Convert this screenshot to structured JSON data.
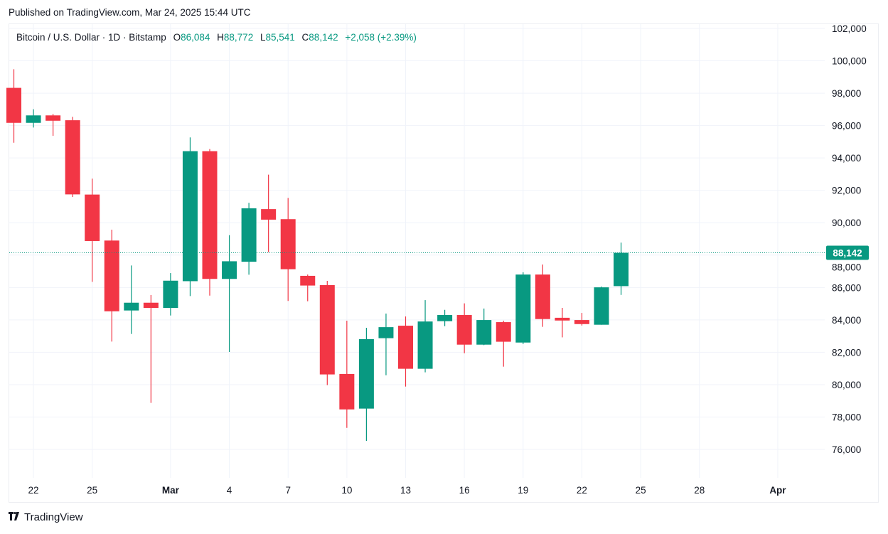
{
  "header": {
    "published": "Published on TradingView.com, Mar 24, 2025 15:44 UTC"
  },
  "legend": {
    "symbol": "Bitcoin / U.S. Dollar · 1D · Bitstamp",
    "o_label": "O",
    "o": "86,084",
    "h_label": "H",
    "h": "88,772",
    "l_label": "L",
    "l": "85,541",
    "c_label": "C",
    "c": "88,142",
    "change": "+2,058 (+2.39%)"
  },
  "footer": {
    "brand": "TradingView",
    "logo_mark": "TV"
  },
  "colors": {
    "up": "#089981",
    "down": "#f23645",
    "grid": "#f0f3fa",
    "text": "#131722"
  },
  "chart_data": {
    "type": "candlestick",
    "title": "Bitcoin / U.S. Dollar · 1D · Bitstamp",
    "ylim": [
      74000,
      102500
    ],
    "y_ticks": [
      76000,
      78000,
      80000,
      82000,
      84000,
      86000,
      88000,
      90000,
      92000,
      94000,
      96000,
      98000,
      100000,
      102000
    ],
    "y_tick_labels": [
      "76,000",
      "78,000",
      "80,000",
      "82,000",
      "84,000",
      "86,000",
      "88,000",
      "90,000",
      "92,000",
      "94,000",
      "96,000",
      "98,000",
      "100,000",
      "102,000"
    ],
    "x_ticks": [
      {
        "date": "2025-02-22",
        "label": "22",
        "bold": false
      },
      {
        "date": "2025-02-25",
        "label": "25",
        "bold": false
      },
      {
        "date": "2025-03-01",
        "label": "Mar",
        "bold": true
      },
      {
        "date": "2025-03-04",
        "label": "4",
        "bold": false
      },
      {
        "date": "2025-03-07",
        "label": "7",
        "bold": false
      },
      {
        "date": "2025-03-10",
        "label": "10",
        "bold": false
      },
      {
        "date": "2025-03-13",
        "label": "13",
        "bold": false
      },
      {
        "date": "2025-03-16",
        "label": "16",
        "bold": false
      },
      {
        "date": "2025-03-19",
        "label": "19",
        "bold": false
      },
      {
        "date": "2025-03-22",
        "label": "22",
        "bold": false
      },
      {
        "date": "2025-03-25",
        "label": "25",
        "bold": false
      },
      {
        "date": "2025-03-28",
        "label": "28",
        "bold": false
      },
      {
        "date": "2025-04-01",
        "label": "Apr",
        "bold": true
      }
    ],
    "last_price": 88142,
    "last_price_label": "88,142",
    "grid": true,
    "candles": [
      {
        "date": "2025-02-21",
        "o": 98330,
        "h": 99480,
        "l": 94940,
        "c": 96170
      },
      {
        "date": "2025-02-22",
        "o": 96170,
        "h": 97010,
        "l": 95880,
        "c": 96630
      },
      {
        "date": "2025-02-23",
        "o": 96630,
        "h": 96720,
        "l": 95370,
        "c": 96300
      },
      {
        "date": "2025-02-24",
        "o": 96330,
        "h": 96540,
        "l": 91590,
        "c": 91750
      },
      {
        "date": "2025-02-25",
        "o": 91740,
        "h": 92720,
        "l": 86350,
        "c": 88870
      },
      {
        "date": "2025-02-26",
        "o": 88900,
        "h": 89570,
        "l": 82660,
        "c": 84530
      },
      {
        "date": "2025-02-27",
        "o": 84580,
        "h": 87360,
        "l": 83130,
        "c": 85060
      },
      {
        "date": "2025-02-28",
        "o": 85060,
        "h": 85530,
        "l": 78870,
        "c": 84740
      },
      {
        "date": "2025-03-01",
        "o": 84740,
        "h": 86890,
        "l": 84270,
        "c": 86420
      },
      {
        "date": "2025-03-02",
        "o": 86390,
        "h": 95270,
        "l": 85470,
        "c": 94420
      },
      {
        "date": "2025-03-03",
        "o": 94420,
        "h": 94550,
        "l": 85500,
        "c": 86530
      },
      {
        "date": "2025-03-04",
        "o": 86530,
        "h": 89230,
        "l": 82020,
        "c": 87620
      },
      {
        "date": "2025-03-05",
        "o": 87590,
        "h": 91230,
        "l": 86790,
        "c": 90890
      },
      {
        "date": "2025-03-06",
        "o": 90840,
        "h": 92970,
        "l": 88180,
        "c": 90190
      },
      {
        "date": "2025-03-07",
        "o": 90220,
        "h": 91530,
        "l": 85170,
        "c": 87130
      },
      {
        "date": "2025-03-08",
        "o": 86720,
        "h": 86800,
        "l": 85150,
        "c": 86120
      },
      {
        "date": "2025-03-09",
        "o": 86150,
        "h": 86410,
        "l": 79970,
        "c": 80630
      },
      {
        "date": "2025-03-10",
        "o": 80660,
        "h": 83950,
        "l": 77330,
        "c": 78470
      },
      {
        "date": "2025-03-11",
        "o": 78520,
        "h": 83510,
        "l": 76530,
        "c": 82810
      },
      {
        "date": "2025-03-12",
        "o": 82870,
        "h": 84390,
        "l": 80580,
        "c": 83550
      },
      {
        "date": "2025-03-13",
        "o": 83640,
        "h": 84210,
        "l": 79880,
        "c": 80980
      },
      {
        "date": "2025-03-14",
        "o": 80980,
        "h": 85220,
        "l": 80760,
        "c": 83900
      },
      {
        "date": "2025-03-15",
        "o": 83920,
        "h": 84620,
        "l": 83610,
        "c": 84300
      },
      {
        "date": "2025-03-16",
        "o": 84300,
        "h": 85020,
        "l": 81940,
        "c": 82470
      },
      {
        "date": "2025-03-17",
        "o": 82470,
        "h": 84700,
        "l": 82440,
        "c": 83990
      },
      {
        "date": "2025-03-18",
        "o": 83860,
        "h": 83950,
        "l": 81110,
        "c": 82650
      },
      {
        "date": "2025-03-19",
        "o": 82600,
        "h": 86940,
        "l": 82510,
        "c": 86800
      },
      {
        "date": "2025-03-20",
        "o": 86800,
        "h": 87420,
        "l": 83570,
        "c": 84050
      },
      {
        "date": "2025-03-21",
        "o": 84130,
        "h": 84740,
        "l": 82920,
        "c": 83960
      },
      {
        "date": "2025-03-22",
        "o": 83990,
        "h": 84430,
        "l": 83650,
        "c": 83740
      },
      {
        "date": "2025-03-23",
        "o": 83700,
        "h": 86060,
        "l": 83700,
        "c": 86010
      },
      {
        "date": "2025-03-24",
        "o": 86084,
        "h": 88772,
        "l": 85541,
        "c": 88142
      }
    ]
  }
}
